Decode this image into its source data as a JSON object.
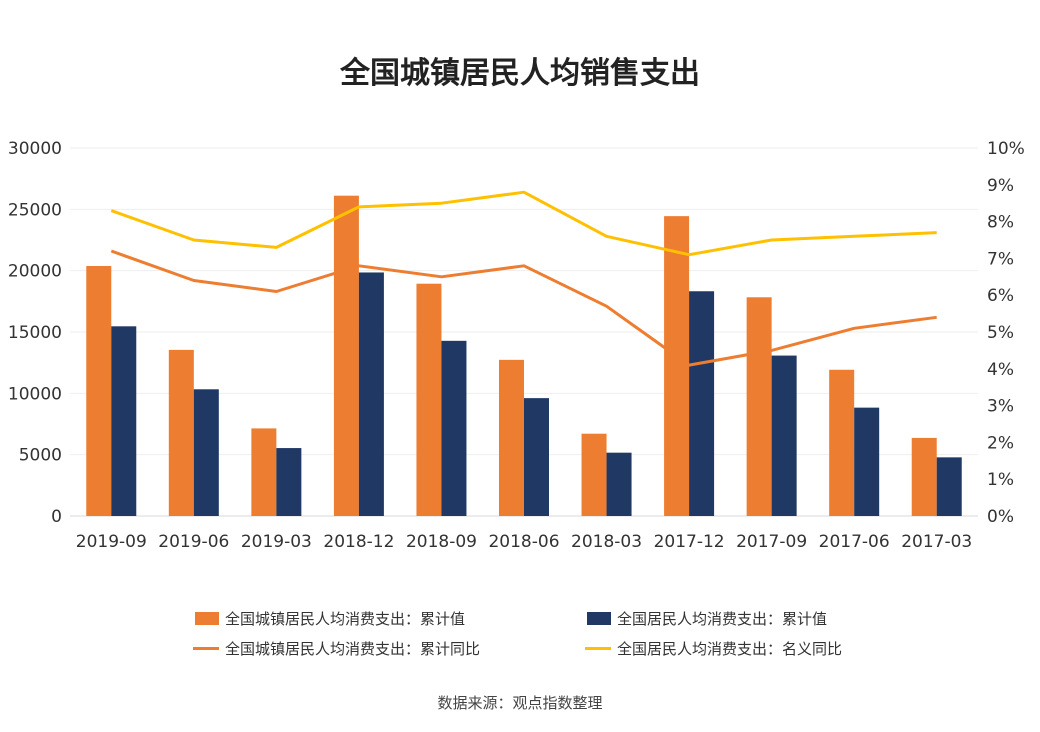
{
  "title": "全国城镇居民人均销售支出",
  "source": "数据来源：观点指数整理",
  "colors": {
    "orange": "#ED7D31",
    "navy": "#203864",
    "yellow": "#FFC000",
    "grid": "#eeeeee"
  },
  "legend": [
    {
      "label": "全国城镇居民人均消费支出：累计值",
      "kind": "bar",
      "color": "#ED7D31"
    },
    {
      "label": "全国居民人均消费支出：累计值",
      "kind": "bar",
      "color": "#203864"
    },
    {
      "label": "全国城镇居民人均消费支出：累计同比",
      "kind": "line",
      "color": "#ED7D31"
    },
    {
      "label": "全国居民人均消费支出：名义同比",
      "kind": "line",
      "color": "#FFC000"
    }
  ],
  "chart_data": {
    "type": "bar",
    "title": "全国城镇居民人均销售支出",
    "categories": [
      "2019-09",
      "2019-06",
      "2019-03",
      "2018-12",
      "2018-09",
      "2018-06",
      "2018-03",
      "2017-12",
      "2017-09",
      "2017-06",
      "2017-03"
    ],
    "y_left": {
      "ylim": [
        0,
        30000
      ],
      "ticks": [
        "0",
        "5000",
        "10000",
        "15000",
        "20000",
        "25000",
        "30000"
      ]
    },
    "y_right": {
      "ylim": [
        0,
        10
      ],
      "ticks": [
        "0%",
        "1%",
        "2%",
        "3%",
        "4%",
        "5%",
        "6%",
        "7%",
        "8%",
        "9%",
        "10%"
      ]
    },
    "grid": true,
    "legend_position": "bottom",
    "series": [
      {
        "name": "全国城镇居民人均消费支出：累计值",
        "type": "bar",
        "axis": "left",
        "values": [
          20379,
          13542,
          7140,
          26112,
          18937,
          12729,
          6709,
          24445,
          17830,
          11921,
          6365
        ]
      },
      {
        "name": "全国居民人均消费支出：累计值",
        "type": "bar",
        "axis": "left",
        "values": [
          15464,
          10330,
          5538,
          19853,
          14281,
          9609,
          5162,
          18322,
          13078,
          8834,
          4781
        ]
      },
      {
        "name": "全国城镇居民人均消费支出：累计同比",
        "type": "line",
        "axis": "right",
        "values": [
          7.2,
          6.4,
          6.1,
          6.8,
          6.5,
          6.8,
          5.7,
          4.1,
          4.5,
          5.1,
          5.4
        ]
      },
      {
        "name": "全国居民人均消费支出：名义同比",
        "type": "line",
        "axis": "right",
        "values": [
          8.3,
          7.5,
          7.3,
          8.4,
          8.5,
          8.8,
          7.6,
          7.1,
          7.5,
          7.6,
          7.7
        ]
      }
    ]
  }
}
